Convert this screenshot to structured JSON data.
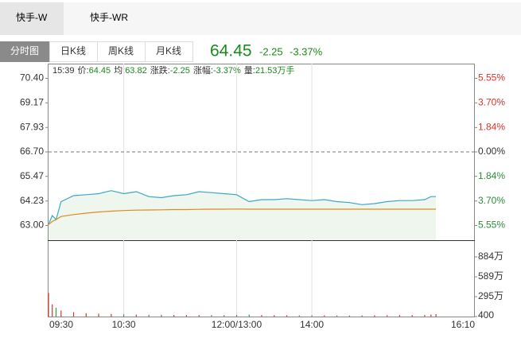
{
  "tabs": [
    "快手-W",
    "快手-WR"
  ],
  "views": [
    "分时图",
    "日K线",
    "周K线",
    "月K线"
  ],
  "quote": {
    "price": "64.45",
    "change": "-2.25",
    "change_pct": "-3.37%"
  },
  "info": {
    "time": "15:39",
    "items": [
      {
        "label": "价:",
        "value": "64.45"
      },
      {
        "label": "均:",
        "value": "63.82"
      },
      {
        "label": "涨跌:",
        "value": "-2.25"
      },
      {
        "label": "涨幅:",
        "value": "-3.37%"
      },
      {
        "label": "量:",
        "value": "21.53万手"
      }
    ]
  },
  "chart_data": {
    "type": "line",
    "x": [
      0,
      3,
      6,
      10,
      20,
      30,
      40,
      50,
      60,
      70,
      80,
      90,
      100,
      110,
      120,
      130,
      140,
      150,
      160,
      170,
      180,
      190,
      200,
      210,
      220,
      230,
      240,
      250,
      260,
      270,
      280,
      290,
      300,
      305,
      309
    ],
    "series": [
      {
        "color": "#3aa8c8",
        "area": "#eef6ee",
        "values": [
          63.05,
          63.5,
          63.3,
          64.2,
          64.5,
          64.55,
          64.6,
          64.75,
          64.6,
          64.7,
          64.45,
          64.4,
          64.5,
          64.55,
          64.7,
          64.65,
          64.6,
          64.55,
          64.2,
          64.3,
          64.3,
          64.35,
          64.3,
          64.25,
          64.3,
          64.2,
          64.15,
          64.05,
          64.1,
          64.2,
          64.25,
          64.25,
          64.3,
          64.45,
          64.45
        ]
      },
      {
        "color": "#e0891c",
        "values": [
          63.05,
          63.2,
          63.3,
          63.45,
          63.55,
          63.62,
          63.68,
          63.72,
          63.75,
          63.77,
          63.78,
          63.79,
          63.8,
          63.8,
          63.81,
          63.82,
          63.82,
          63.83,
          63.82,
          63.82,
          63.82,
          63.82,
          63.82,
          63.82,
          63.82,
          63.82,
          63.82,
          63.82,
          63.82,
          63.82,
          63.82,
          63.82,
          63.82,
          63.82,
          63.82
        ]
      }
    ],
    "xlim": [
      0,
      340
    ],
    "xticks": [
      {
        "value": 0,
        "label": "09:30"
      },
      {
        "value": 60,
        "label": "10:30"
      },
      {
        "value": 150,
        "label": "12:00/13:00"
      },
      {
        "value": 210,
        "label": "14:00"
      },
      {
        "value": 340,
        "label": "16:10"
      }
    ],
    "ylim": [
      62.26,
      71.14
    ],
    "yticks": [
      {
        "value": 70.4,
        "label": "70.40"
      },
      {
        "value": 69.17,
        "label": "69.17"
      },
      {
        "value": 67.93,
        "label": "67.93"
      },
      {
        "value": 66.7,
        "label": "66.70"
      },
      {
        "value": 65.47,
        "label": "65.47"
      },
      {
        "value": 64.23,
        "label": "64.23"
      },
      {
        "value": 63,
        "label": "63.00"
      }
    ],
    "y2lim": [
      -6.66,
      6.66
    ],
    "y2ticks": [
      {
        "value": 5.55,
        "label": "5.55%"
      },
      {
        "value": 3.7,
        "label": "3.70%"
      },
      {
        "value": 1.84,
        "label": "1.84%"
      },
      {
        "value": 0,
        "label": "0.00%"
      },
      {
        "value": -1.84,
        "label": "1.84%"
      },
      {
        "value": -3.7,
        "label": "3.70%"
      },
      {
        "value": -5.55,
        "label": "5.55%"
      }
    ],
    "reference_line": 66.7,
    "volume": {
      "values": [
        3500000,
        1800000,
        1300000,
        900000,
        650000,
        500000,
        420000,
        380000,
        330000,
        300000,
        280000,
        260000,
        240000,
        230000,
        220000,
        210000,
        200000,
        250000,
        300000,
        220000,
        200000,
        190000,
        180000,
        180000,
        170000,
        170000,
        160000,
        170000,
        180000,
        190000,
        200000,
        210000,
        230000,
        300000,
        350000
      ],
      "ylim": [
        400,
        11320000
      ],
      "yticks": [
        {
          "value": 8840000,
          "label": "884万"
        },
        {
          "value": 5890000,
          "label": "589万"
        },
        {
          "value": 2950000,
          "label": "295万"
        },
        400
      ],
      "up_color": "#d9342b",
      "down_color": "#3c9a3c"
    }
  }
}
